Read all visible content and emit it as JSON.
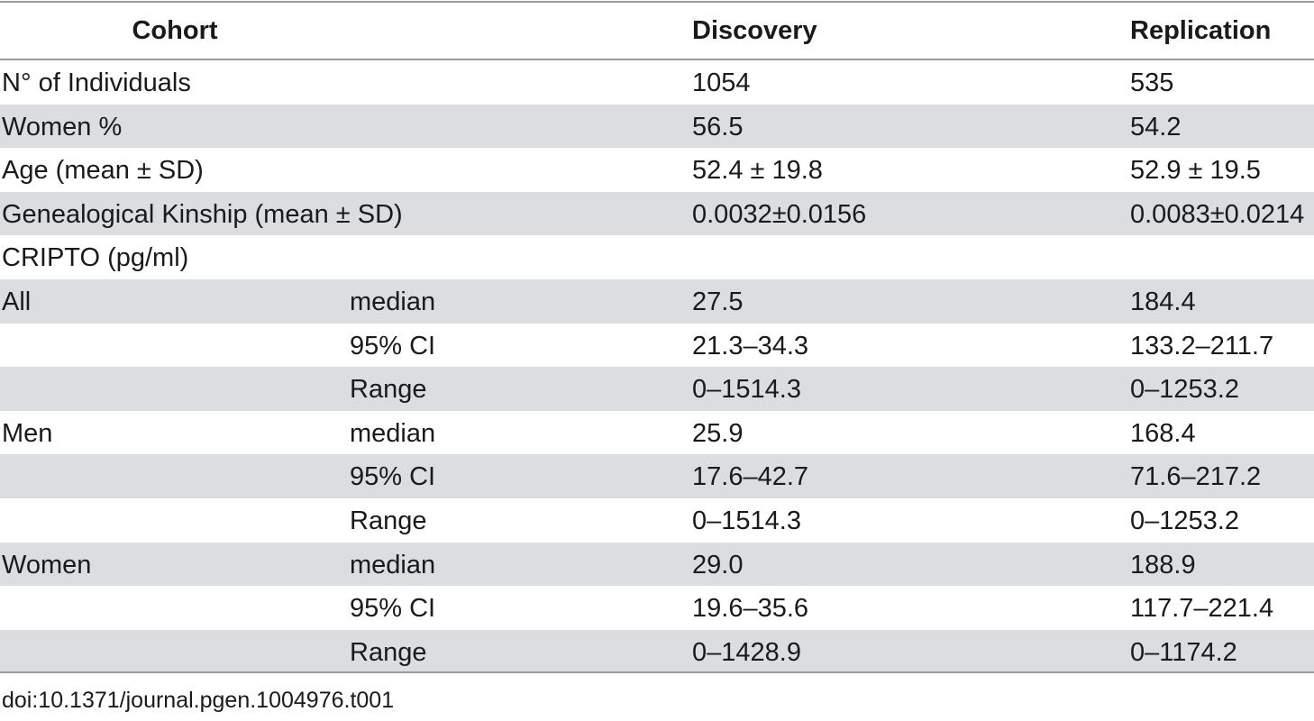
{
  "table": {
    "headers": {
      "cohort": "Cohort",
      "discovery": "Discovery",
      "replication": "Replication"
    },
    "rows": [
      {
        "label": "N° of Individuals",
        "stat": "",
        "discovery": "1054",
        "replication": "535",
        "shaded": false
      },
      {
        "label": "Women %",
        "stat": "",
        "discovery": "56.5",
        "replication": "54.2",
        "shaded": true
      },
      {
        "label": "Age (mean ± SD)",
        "stat": "",
        "discovery": "52.4 ± 19.8",
        "replication": "52.9 ± 19.5",
        "shaded": false
      },
      {
        "label": "Genealogical Kinship (mean ± SD)",
        "stat": "",
        "discovery": "0.0032±0.0156",
        "replication": "0.0083±0.0214",
        "shaded": true
      },
      {
        "label": "CRIPTO (pg/ml)",
        "stat": "",
        "discovery": "",
        "replication": "",
        "shaded": false
      },
      {
        "label": "All",
        "stat": "median",
        "discovery": "27.5",
        "replication": "184.4",
        "shaded": true
      },
      {
        "label": "",
        "stat": "95% CI",
        "discovery": "21.3–34.3",
        "replication": "133.2–211.7",
        "shaded": false
      },
      {
        "label": "",
        "stat": "Range",
        "discovery": "0–1514.3",
        "replication": "0–1253.2",
        "shaded": true
      },
      {
        "label": "Men",
        "stat": "median",
        "discovery": "25.9",
        "replication": "168.4",
        "shaded": false
      },
      {
        "label": "",
        "stat": "95% CI",
        "discovery": "17.6–42.7",
        "replication": "71.6–217.2",
        "shaded": true
      },
      {
        "label": "",
        "stat": "Range",
        "discovery": "0–1514.3",
        "replication": "0–1253.2",
        "shaded": false
      },
      {
        "label": "Women",
        "stat": "median",
        "discovery": "29.0",
        "replication": "188.9",
        "shaded": true
      },
      {
        "label": "",
        "stat": "95% CI",
        "discovery": "19.6–35.6",
        "replication": "117.7–221.4",
        "shaded": false
      },
      {
        "label": "",
        "stat": "Range",
        "discovery": "0–1428.9",
        "replication": "0–1174.2",
        "shaded": true
      }
    ]
  },
  "footer": {
    "doi": "doi:10.1371/journal.pgen.1004976.t001"
  }
}
